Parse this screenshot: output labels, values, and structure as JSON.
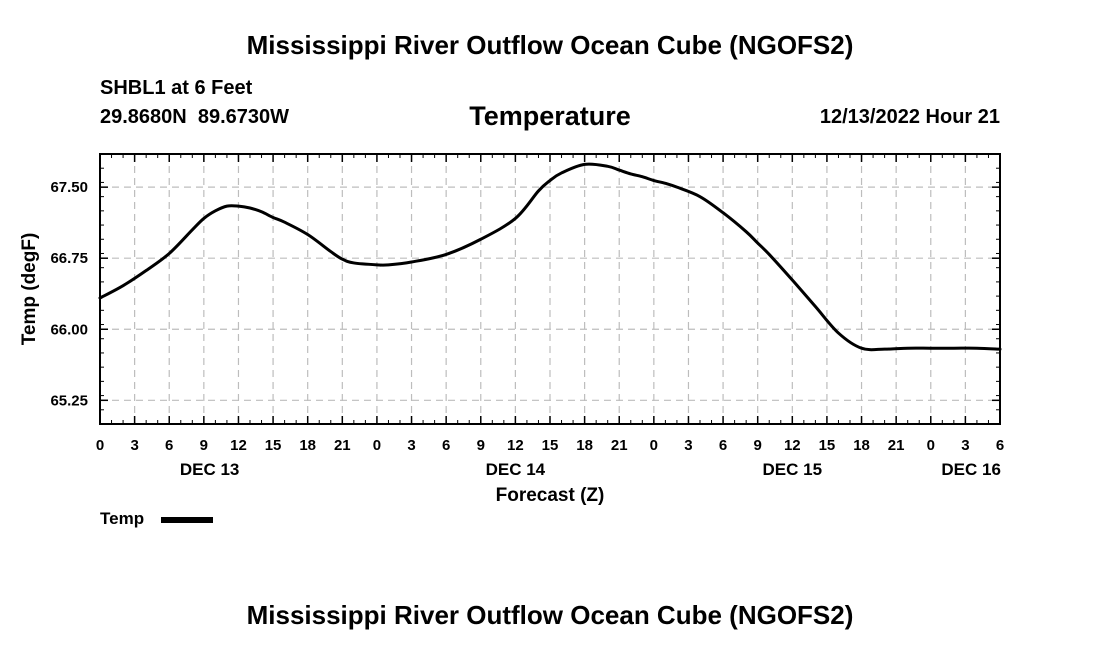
{
  "page": {
    "title": "Mississippi River Outflow Ocean Cube (NGOFS2)",
    "footer_title": "Mississippi River Outflow Ocean Cube (NGOFS2)"
  },
  "station": {
    "name_depth": "SHBL1 at 6 Feet",
    "coordinates": "29.8680N  89.6730W"
  },
  "variable_title": "Temperature",
  "timestamp": "12/13/2022 Hour 21",
  "legend": {
    "label": "Temp",
    "color": "#000000"
  },
  "chart_data": {
    "type": "line",
    "title": "Temperature",
    "xlabel": "Forecast (Z)",
    "ylabel": "Temp (degF)",
    "x_unit": "hours since 2022-12-13 00Z",
    "xlim": [
      0,
      78
    ],
    "ylim": [
      65.0,
      67.85
    ],
    "grid": true,
    "yticks": [
      65.25,
      66.0,
      66.75,
      67.5
    ],
    "ytick_labels": [
      "65.25",
      "66.00",
      "66.75",
      "67.50"
    ],
    "xticks": [
      0,
      3,
      6,
      9,
      12,
      15,
      18,
      21,
      24,
      27,
      30,
      33,
      36,
      39,
      42,
      45,
      48,
      51,
      54,
      57,
      60,
      63,
      66,
      69,
      72,
      75,
      78
    ],
    "xtick_labels": [
      "0",
      "3",
      "6",
      "9",
      "12",
      "15",
      "18",
      "21",
      "0",
      "3",
      "6",
      "9",
      "12",
      "15",
      "18",
      "21",
      "0",
      "3",
      "6",
      "9",
      "12",
      "15",
      "18",
      "21",
      "0",
      "3",
      "6"
    ],
    "date_labels": [
      {
        "x": 9.5,
        "label": "DEC 13"
      },
      {
        "x": 36,
        "label": "DEC 14"
      },
      {
        "x": 60,
        "label": "DEC 15"
      },
      {
        "x": 75.5,
        "label": "DEC 16"
      }
    ],
    "series": [
      {
        "name": "Temp",
        "color": "#000000",
        "x": [
          0,
          2,
          4,
          6,
          8,
          9,
          10,
          11,
          12,
          13,
          14,
          15,
          16,
          18,
          20,
          21,
          22,
          24,
          25,
          27,
          30,
          33,
          36,
          38,
          39,
          40,
          42,
          44,
          45,
          46,
          47,
          48,
          49,
          50,
          52,
          54,
          56,
          57,
          58,
          60,
          62,
          64,
          66,
          68,
          70,
          72,
          74,
          76,
          78
        ],
        "y": [
          66.33,
          66.46,
          66.62,
          66.8,
          67.05,
          67.17,
          67.25,
          67.3,
          67.3,
          67.28,
          67.24,
          67.18,
          67.13,
          67.0,
          66.82,
          66.74,
          66.7,
          66.68,
          66.68,
          66.71,
          66.79,
          66.95,
          67.17,
          67.46,
          67.57,
          67.65,
          67.74,
          67.72,
          67.68,
          67.64,
          67.61,
          67.57,
          67.54,
          67.5,
          67.4,
          67.23,
          67.03,
          66.91,
          66.79,
          66.52,
          66.24,
          65.96,
          65.8,
          65.79,
          65.8,
          65.8,
          65.8,
          65.8,
          65.79
        ]
      }
    ]
  }
}
